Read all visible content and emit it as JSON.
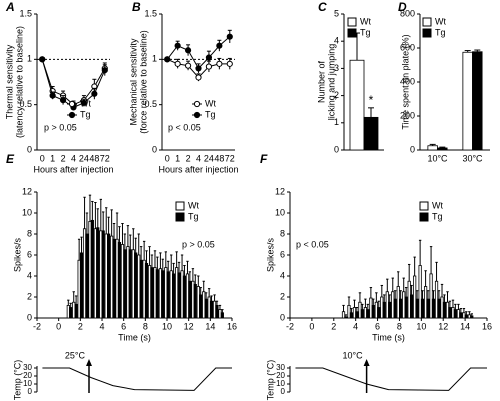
{
  "chart_data": [
    {
      "type": "line",
      "title": "A",
      "ylabel": [
        "Thermal sensitivity",
        "(latency relative to baseline)"
      ],
      "xlabel": "Hours after injection",
      "categories": [
        "0",
        "1",
        "2",
        "4",
        "24",
        "48",
        "72"
      ],
      "ylim": [
        0,
        1.5
      ],
      "yticks": [
        0,
        0.5,
        1,
        1.5
      ],
      "refline": 1,
      "annotation": "p > 0.05",
      "series": [
        {
          "name": "Wt",
          "color": "#ffffff",
          "values": [
            1,
            0.65,
            0.6,
            0.5,
            0.55,
            0.7,
            0.9
          ],
          "errors": [
            0,
            0.05,
            0.05,
            0.04,
            0.05,
            0.08,
            0.06
          ]
        },
        {
          "name": "Tg",
          "color": "#000000",
          "values": [
            1,
            0.6,
            0.55,
            0.47,
            0.52,
            0.62,
            0.88
          ],
          "errors": [
            0,
            0.04,
            0.05,
            0.03,
            0.04,
            0.06,
            0.06
          ]
        }
      ]
    },
    {
      "type": "line",
      "title": "B",
      "ylabel": [
        "Mechanical sensitivity",
        "(force relative to baseline)"
      ],
      "xlabel": "Hours after injection",
      "categories": [
        "0",
        "1",
        "2",
        "4",
        "24",
        "48",
        "72"
      ],
      "ylim": [
        0,
        1.5
      ],
      "yticks": [
        0,
        0.5,
        1,
        1.5
      ],
      "refline": 1,
      "annotation": "p < 0.05",
      "series": [
        {
          "name": "Wt",
          "color": "#ffffff",
          "values": [
            1,
            0.95,
            0.93,
            0.8,
            0.92,
            0.95,
            0.95
          ],
          "errors": [
            0,
            0.05,
            0.05,
            0.04,
            0.06,
            0.06,
            0.06
          ]
        },
        {
          "name": "Tg",
          "color": "#000000",
          "values": [
            1,
            1.15,
            1.1,
            0.9,
            1.02,
            1.15,
            1.25
          ],
          "errors": [
            0,
            0.05,
            0.06,
            0.05,
            0.07,
            0.06,
            0.07
          ]
        }
      ]
    },
    {
      "type": "bar",
      "title": "C",
      "ylabel": [
        "Number of",
        "licking and jumping"
      ],
      "ylim": [
        0,
        5
      ],
      "yticks": [
        0,
        1,
        2,
        3,
        4,
        5
      ],
      "annotation": "*",
      "series": [
        {
          "name": "Wt",
          "color": "#ffffff",
          "values": [
            3.3
          ],
          "errors": [
            1.0
          ]
        },
        {
          "name": "Tg",
          "color": "#000000",
          "values": [
            1.2
          ],
          "errors": [
            0.35
          ]
        }
      ]
    },
    {
      "type": "bar",
      "title": "D",
      "ylabel": [
        "Time spent on plate (%)"
      ],
      "categories": [
        "10°C",
        "30°C"
      ],
      "ylim": [
        0,
        800
      ],
      "yticks": [
        0,
        200,
        400,
        600,
        800
      ],
      "series": [
        {
          "name": "Wt",
          "color": "#ffffff",
          "values": [
            25,
            575
          ],
          "errors": [
            8,
            10
          ]
        },
        {
          "name": "Tg",
          "color": "#000000",
          "values": [
            12,
            578
          ],
          "errors": [
            5,
            10
          ]
        }
      ]
    },
    {
      "type": "bar",
      "title": "E",
      "ylabel": [
        "Spikes/s"
      ],
      "xlabel": "Time (s)",
      "annotation": "p > 0.05",
      "xlim": [
        -2,
        16
      ],
      "xticks": [
        -2,
        0,
        2,
        4,
        6,
        8,
        10,
        12,
        14,
        16
      ],
      "ylim": [
        0,
        12
      ],
      "yticks": [
        0,
        2,
        4,
        6,
        8,
        10,
        12
      ],
      "x": [
        1,
        1.5,
        2,
        2.5,
        3,
        3.5,
        4,
        4.5,
        5,
        5.5,
        6,
        6.5,
        7,
        7.5,
        8,
        8.5,
        9,
        9.5,
        10,
        10.5,
        11,
        11.5,
        12,
        12.5,
        13,
        13.5,
        14,
        14.5,
        15
      ],
      "series": [
        {
          "name": "Wt",
          "color": "#ffffff",
          "values": [
            1.2,
            1.5,
            5.5,
            8.5,
            9.2,
            8.5,
            8.3,
            8.0,
            7.8,
            7.5,
            7.0,
            6.8,
            6.5,
            6.0,
            5.5,
            5.0,
            4.8,
            4.7,
            4.8,
            4.5,
            4.8,
            4.5,
            4.2,
            3.5,
            3.0,
            2.5,
            2.0,
            1.6,
            0.8
          ],
          "errors": [
            0.5,
            1,
            2,
            3,
            2.5,
            2.5,
            3,
            2.5,
            2.5,
            2.5,
            2,
            2,
            2,
            2,
            1.8,
            1.8,
            1.6,
            1.5,
            1.5,
            1.5,
            1.5,
            1.5,
            1.2,
            1.2,
            1,
            1,
            0.8,
            0.6,
            0.4
          ]
        },
        {
          "name": "Tg",
          "color": "#000000",
          "values": [
            1.0,
            1.3,
            6.2,
            8.0,
            9.3,
            8.6,
            8.3,
            8.0,
            7.5,
            7.2,
            6.5,
            6.5,
            6.2,
            5.5,
            5.2,
            4.8,
            4.6,
            4.5,
            4.4,
            4.2,
            4.3,
            4.0,
            3.5,
            3.2,
            2.2,
            1.8,
            1.6,
            1.2,
            0.5
          ],
          "errors": [
            0.4,
            0.8,
            1.5,
            2,
            1.8,
            1.8,
            1.8,
            1.6,
            1.5,
            1.5,
            1.5,
            1.4,
            1.4,
            1.3,
            1.2,
            1.2,
            1.2,
            1.1,
            1,
            1,
            1,
            1,
            0.9,
            0.9,
            0.7,
            0.6,
            0.5,
            0.4,
            0.3
          ]
        }
      ],
      "temp_trace": {
        "ylabel": "Temp (°C)",
        "ylim": [
          0,
          30
        ],
        "yticks": [
          0,
          10,
          20,
          30
        ],
        "annotation": "25°C",
        "arrow_x": 2.8,
        "x": [
          -1.5,
          1,
          3,
          5,
          7,
          12.5,
          14.5,
          16
        ],
        "y": [
          30,
          30,
          18,
          8,
          3,
          2,
          30,
          30
        ]
      }
    },
    {
      "type": "bar",
      "title": "F",
      "ylabel": [
        "Spikes/s"
      ],
      "xlabel": "Time (s)",
      "annotation": "p < 0.05",
      "xlim": [
        -2,
        16
      ],
      "xticks": [
        -2,
        0,
        2,
        4,
        6,
        8,
        10,
        12,
        14,
        16
      ],
      "ylim": [
        0,
        12
      ],
      "yticks": [
        0,
        2,
        4,
        6,
        8,
        10,
        12
      ],
      "x": [
        3,
        3.5,
        4,
        4.5,
        5,
        5.5,
        6,
        6.5,
        7,
        7.5,
        8,
        8.5,
        9,
        9.5,
        10,
        10.5,
        11,
        11.5,
        12,
        12.5,
        13,
        13.5,
        14,
        14.5
      ],
      "series": [
        {
          "name": "Wt",
          "color": "#ffffff",
          "values": [
            0.6,
            1.2,
            1.0,
            1.5,
            1.0,
            1.9,
            1.5,
            2.0,
            2.5,
            2.5,
            3.0,
            2.5,
            3.5,
            4.0,
            5.0,
            3.0,
            4.2,
            3.5,
            2.0,
            1.5,
            1.0,
            0.8,
            0.5,
            0.3
          ],
          "errors": [
            0.6,
            0.8,
            0.7,
            0.9,
            0.8,
            1,
            0.9,
            1.1,
            1.2,
            1.3,
            1.4,
            1.3,
            1.6,
            1.8,
            2.4,
            1.5,
            2.6,
            1.8,
            1.2,
            1,
            0.7,
            0.5,
            0.4,
            0.3
          ]
        },
        {
          "name": "Tg",
          "color": "#000000",
          "values": [
            0.1,
            0.5,
            0.6,
            0.8,
            0.8,
            1.2,
            1.0,
            1.5,
            1.5,
            1.8,
            1.8,
            2.0,
            2.2,
            1.8,
            1.8,
            1.8,
            1.8,
            1.8,
            1.5,
            1.0,
            0.8,
            0.5,
            0.3,
            0.2
          ],
          "errors": [
            0.2,
            0.4,
            0.4,
            0.5,
            0.5,
            0.6,
            0.6,
            0.7,
            0.7,
            0.8,
            0.8,
            0.9,
            0.9,
            0.8,
            0.8,
            0.8,
            0.8,
            0.8,
            0.7,
            0.6,
            0.5,
            0.4,
            0.3,
            0.2
          ]
        }
      ],
      "temp_trace": {
        "ylabel": "Temp (°C)",
        "ylim": [
          0,
          30
        ],
        "yticks": [
          0,
          10,
          20,
          30
        ],
        "annotation": "10°C",
        "arrow_x": 5,
        "x": [
          -1.5,
          1,
          3,
          5,
          7,
          12.5,
          14.5,
          16
        ],
        "y": [
          30,
          30,
          20,
          10,
          3,
          2,
          30,
          30
        ]
      }
    }
  ]
}
